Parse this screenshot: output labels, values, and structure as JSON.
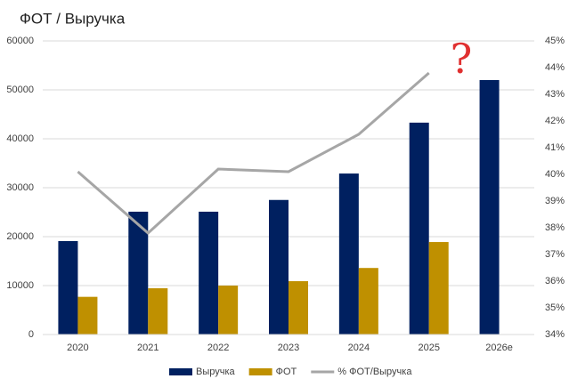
{
  "chart_data": {
    "type": "bar_line",
    "title": "ФОТ / Выручка",
    "annotation": "?",
    "categories": [
      "2020",
      "2021",
      "2022",
      "2023",
      "2024",
      "2025",
      "2026e"
    ],
    "series": [
      {
        "name": "Выручка",
        "type": "bar",
        "color": "#002060",
        "values": [
          19100,
          25100,
          25100,
          27500,
          32900,
          43300,
          52000
        ]
      },
      {
        "name": "ФОТ",
        "type": "bar",
        "color": "#bf9000",
        "values": [
          7700,
          9450,
          10000,
          10900,
          13600,
          18900,
          null
        ]
      },
      {
        "name": "% ФОТ/Выручка",
        "type": "line",
        "axis": "y2",
        "color": "#a6a6a6",
        "values": [
          40.1,
          37.8,
          40.2,
          40.1,
          41.5,
          43.8,
          null
        ]
      }
    ],
    "ylim": [
      0,
      60000
    ],
    "yticks": [
      0,
      10000,
      20000,
      30000,
      40000,
      50000,
      60000
    ],
    "y2lim": [
      34,
      45
    ],
    "y2ticks": [
      {
        "value": 34,
        "label": "34%"
      },
      {
        "value": 35,
        "label": "35%"
      },
      {
        "value": 36,
        "label": "36%"
      },
      {
        "value": 37,
        "label": "37%"
      },
      {
        "value": 38,
        "label": "38%"
      },
      {
        "value": 39,
        "label": "39%"
      },
      {
        "value": 40,
        "label": "40%"
      },
      {
        "value": 41,
        "label": "41%"
      },
      {
        "value": 42,
        "label": "42%"
      },
      {
        "value": 43,
        "label": "43%"
      },
      {
        "value": 44,
        "label": "44%"
      },
      {
        "value": 45,
        "label": "45%"
      }
    ],
    "grid": true,
    "legend": "bottom"
  }
}
